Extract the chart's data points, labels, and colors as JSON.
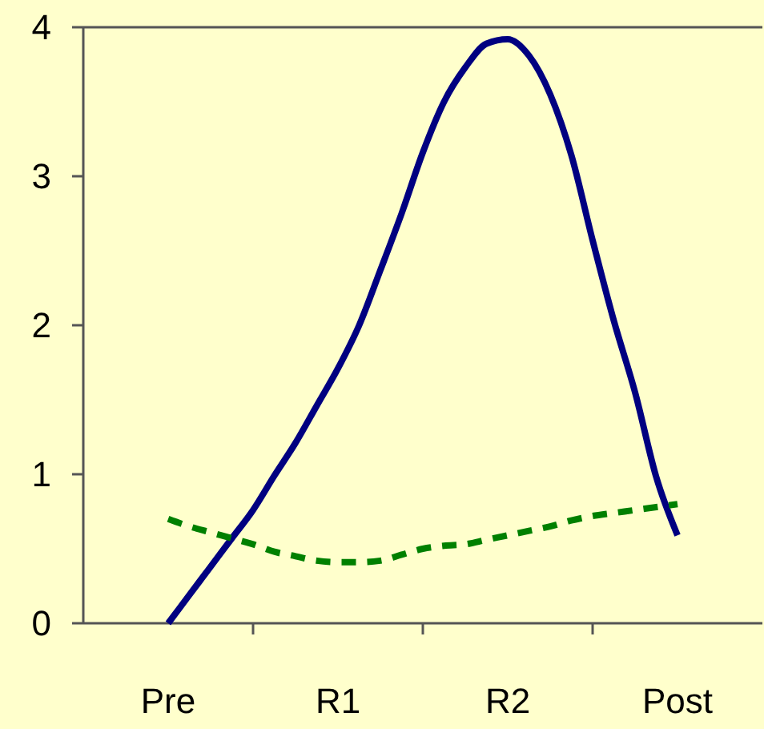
{
  "chart_data": {
    "type": "line",
    "categories": [
      "Pre",
      null,
      null,
      null,
      null,
      null,
      null,
      null,
      "R1",
      null,
      null,
      null,
      null,
      null,
      null,
      null,
      "R2",
      null,
      null,
      null,
      null,
      null,
      null,
      null,
      "Post"
    ],
    "ylim": [
      0,
      4
    ],
    "yticks": [
      0,
      1,
      2,
      3,
      4
    ],
    "grid": false,
    "marker": "none",
    "series": [
      {
        "color": "#000080",
        "line_style": "solid",
        "values": [
          0,
          0.19,
          0.38,
          0.57,
          0.76,
          0.99,
          1.21,
          1.46,
          1.71,
          2.0,
          2.37,
          2.75,
          3.16,
          3.5,
          3.73,
          3.89,
          3.92,
          3.81,
          3.55,
          3.14,
          2.57,
          2.03,
          1.55,
          0.98,
          0.59
        ]
      },
      {
        "color": "#008000",
        "line_style": "dashed",
        "values": [
          0.7,
          0.65,
          0.61,
          0.57,
          0.53,
          0.48,
          0.45,
          0.42,
          0.41,
          0.41,
          0.42,
          0.46,
          0.5,
          0.52,
          0.53,
          0.56,
          0.59,
          0.62,
          0.65,
          0.69,
          0.72,
          0.74,
          0.76,
          0.78,
          0.8
        ]
      }
    ]
  }
}
